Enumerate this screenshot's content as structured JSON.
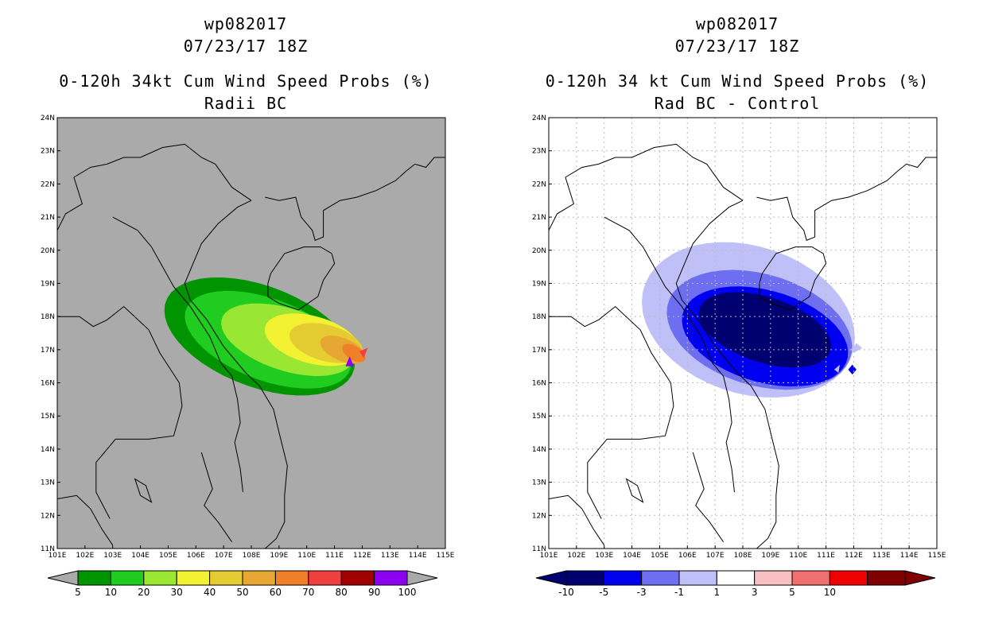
{
  "panels": [
    {
      "storm_id": "wp082017",
      "datetime": "07/23/17 18Z",
      "title": "0-120h 34kt Cum Wind Speed Probs (%)",
      "subtitle": "Radii BC",
      "background": "#aaaaaa",
      "colorbar": {
        "colors": [
          "#009500",
          "#1fcc1f",
          "#99e633",
          "#f2f233",
          "#e6cc33",
          "#e6a733",
          "#f07f29",
          "#f03f3f",
          "#a00000",
          "#8c00f0"
        ],
        "labels": [
          "5",
          "10",
          "20",
          "30",
          "40",
          "50",
          "60",
          "70",
          "80",
          "90",
          "100"
        ]
      }
    },
    {
      "storm_id": "wp082017",
      "datetime": "07/23/17 18Z",
      "title": "0-120h 34 kt Cum Wind Speed Probs (%)",
      "subtitle": "Rad BC - Control",
      "background": "#ffffff",
      "colorbar": {
        "colors": [
          "#000070",
          "#0000f0",
          "#6e6ef0",
          "#c0c0f8",
          "#ffffff",
          "#f8c0c0",
          "#f07070",
          "#f00000",
          "#800000"
        ],
        "labels": [
          "-10",
          "-5",
          "-3",
          "-1",
          "1",
          "3",
          "5",
          "10"
        ]
      }
    }
  ],
  "axes": {
    "lat_labels": [
      "24N",
      "23N",
      "22N",
      "21N",
      "20N",
      "19N",
      "18N",
      "17N",
      "16N",
      "15N",
      "14N",
      "13N",
      "12N",
      "11N"
    ],
    "lon_labels": [
      "101E",
      "102E",
      "103E",
      "104E",
      "105E",
      "106E",
      "107E",
      "108E",
      "109E",
      "110E",
      "111E",
      "112E",
      "113E",
      "114E",
      "115E"
    ]
  }
}
